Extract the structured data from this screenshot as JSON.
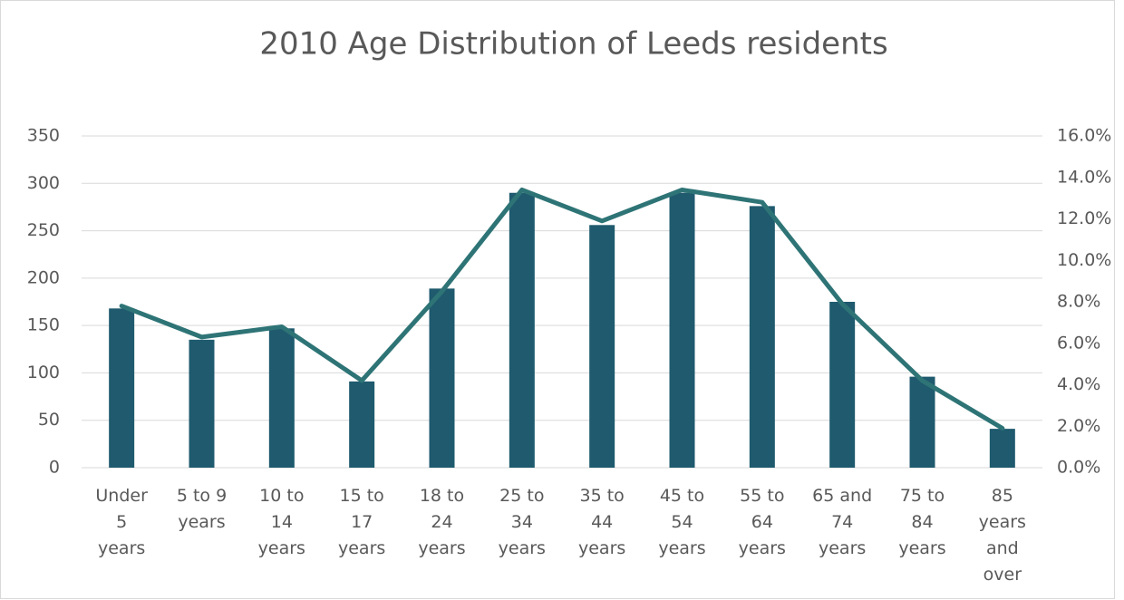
{
  "chart_data": {
    "type": "bar_line",
    "title": "2010 Age Distribution of Leeds residents",
    "categories": [
      "Under 5 years",
      "5 to 9 years",
      "10 to 14 years",
      "15 to 17 years",
      "18 to 24 years",
      "25 to 34 years",
      "35 to 44 years",
      "45 to 54 years",
      "55 to 64 years",
      "65 and 74 years",
      "75 to 84 years",
      "85 years and over"
    ],
    "series": [
      {
        "type": "bar",
        "color": "#1f5a6e",
        "values": [
          168,
          135,
          147,
          91,
          189,
          290,
          256,
          290,
          276,
          175,
          96,
          41
        ]
      },
      {
        "type": "line",
        "axis": "y2",
        "color": "#2e7476",
        "values": [
          7.8,
          6.3,
          6.8,
          4.2,
          8.5,
          13.4,
          11.9,
          13.4,
          12.8,
          7.9,
          4.2,
          1.9
        ]
      }
    ],
    "ylim": [
      0,
      350
    ],
    "yticks": [
      0,
      50,
      100,
      150,
      200,
      250,
      300,
      350
    ],
    "y2lim": [
      0,
      16
    ],
    "y2ticks": [
      {
        "value": 0,
        "label": "0.0%"
      },
      {
        "value": 2,
        "label": "2.0%"
      },
      {
        "value": 4,
        "label": "4.0%"
      },
      {
        "value": 6,
        "label": "6.0%"
      },
      {
        "value": 8,
        "label": "8.0%"
      },
      {
        "value": 10,
        "label": "10.0%"
      },
      {
        "value": 12,
        "label": "12.0%"
      },
      {
        "value": 14,
        "label": "14.0%"
      },
      {
        "value": 16,
        "label": "16.0%"
      }
    ],
    "grid": true
  }
}
